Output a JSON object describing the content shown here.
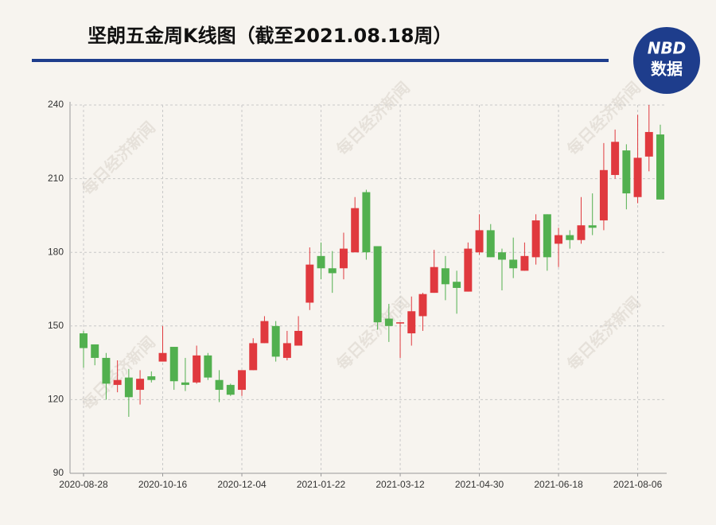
{
  "chart_data": {
    "type": "candlestick",
    "title": "坚朗五金周K线图（截至2021.08.18周）",
    "logo": {
      "top": "NBD",
      "bottom": "数据"
    },
    "watermark": "每日经济新闻",
    "categories": [
      "2020-08-28",
      null,
      null,
      null,
      null,
      null,
      null,
      "2020-10-16",
      null,
      null,
      null,
      null,
      null,
      null,
      "2020-12-04",
      null,
      null,
      null,
      null,
      null,
      null,
      "2021-01-22",
      null,
      null,
      null,
      null,
      null,
      null,
      "2021-03-12",
      null,
      null,
      null,
      null,
      null,
      null,
      "2021-04-30",
      null,
      null,
      null,
      null,
      null,
      null,
      "2021-06-18",
      null,
      null,
      null,
      null,
      null,
      null,
      "2021-08-06",
      null,
      null
    ],
    "open": [
      147,
      142.5,
      137,
      126,
      129,
      124,
      129.5,
      135.5,
      141.5,
      127,
      127,
      138,
      128,
      126,
      124,
      132,
      143,
      150,
      137,
      142,
      159.5,
      178.5,
      173.5,
      173.5,
      180,
      204.5,
      182.5,
      153,
      151,
      147,
      154,
      163.5,
      173.5,
      168,
      164,
      180,
      189,
      180,
      177,
      172.5,
      178,
      195.5,
      183.5,
      187,
      185,
      191,
      193,
      211.5,
      221.5,
      202.5,
      219,
      228
    ],
    "high": [
      148,
      142.5,
      139,
      136,
      132.5,
      132,
      131.5,
      150,
      141.5,
      137,
      142,
      139,
      132,
      126.5,
      132,
      145,
      154,
      152,
      148,
      154,
      182,
      184,
      180.5,
      188,
      202.5,
      205.5,
      182.5,
      159,
      151.5,
      162,
      163.5,
      181,
      178.5,
      172.5,
      184,
      195.5,
      191.5,
      181.5,
      186,
      184,
      195.5,
      195.5,
      190,
      189,
      202.5,
      204,
      224.5,
      230,
      224,
      236,
      240,
      232
    ],
    "low": [
      133,
      134,
      120,
      123,
      113,
      118,
      127,
      135.5,
      124,
      123.5,
      126.5,
      128,
      119,
      121.5,
      121.5,
      132,
      143,
      135.5,
      136,
      142,
      156.5,
      169,
      163.5,
      169,
      180,
      177,
      148.5,
      143.5,
      137,
      142,
      148,
      163.5,
      160.5,
      155,
      164,
      179,
      178,
      164.5,
      169.5,
      172.5,
      175,
      172.5,
      174,
      181.5,
      183.5,
      187,
      189,
      210,
      197.5,
      200,
      213,
      201.5
    ],
    "close": [
      141,
      137,
      126.5,
      128,
      121,
      128.5,
      128,
      139,
      127.5,
      126,
      138,
      129,
      124,
      122,
      132,
      143,
      152,
      137.5,
      143,
      148,
      175,
      173.5,
      171.5,
      181.5,
      198,
      180,
      151.5,
      150,
      151.5,
      156,
      163,
      174,
      167,
      165.5,
      181.5,
      189,
      178,
      177,
      173.5,
      178.5,
      193,
      178,
      187,
      185,
      191,
      190,
      213.5,
      225,
      204,
      218.5,
      229,
      201.5
    ],
    "up_color": "#e0393e",
    "down_color": "#52b04f",
    "ylim": [
      90,
      240
    ],
    "yticks": [
      90,
      120,
      150,
      180,
      210,
      240
    ],
    "grid": true
  }
}
